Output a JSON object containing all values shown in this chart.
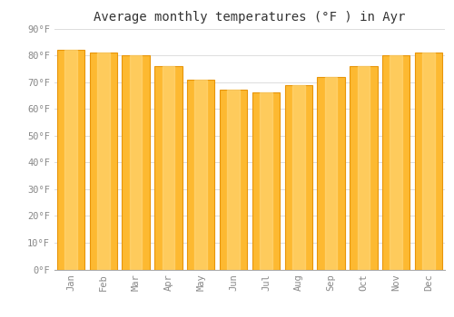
{
  "title": "Average monthly temperatures (°F ) in Ayr",
  "months": [
    "Jan",
    "Feb",
    "Mar",
    "Apr",
    "May",
    "Jun",
    "Jul",
    "Aug",
    "Sep",
    "Oct",
    "Nov",
    "Dec"
  ],
  "values": [
    82,
    81,
    80,
    76,
    71,
    67,
    66,
    69,
    72,
    76,
    80,
    81
  ],
  "bar_color_main": "#FDB931",
  "bar_color_light": "#FFDD88",
  "bar_color_dark": "#E8950A",
  "background_color": "#FFFFFF",
  "grid_color": "#DDDDDD",
  "ylim": [
    0,
    90
  ],
  "yticks": [
    0,
    10,
    20,
    30,
    40,
    50,
    60,
    70,
    80,
    90
  ],
  "ytick_labels": [
    "0°F",
    "10°F",
    "20°F",
    "30°F",
    "40°F",
    "50°F",
    "60°F",
    "70°F",
    "80°F",
    "90°F"
  ],
  "title_fontsize": 10,
  "tick_fontsize": 7.5,
  "tick_color": "#888888",
  "spine_color": "#AAAAAA"
}
